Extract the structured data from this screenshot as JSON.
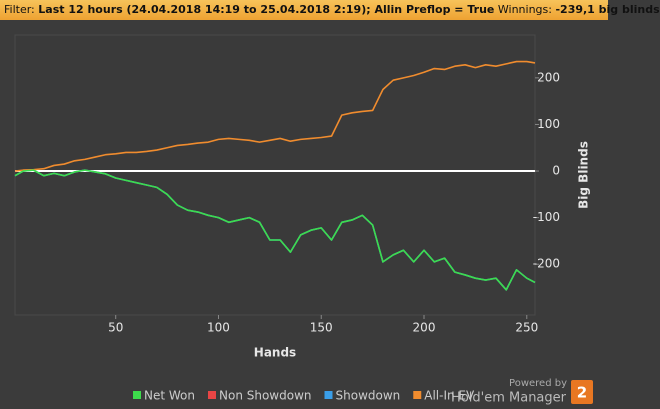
{
  "header": {
    "filter_label": "Filter:",
    "filter_text": "Last 12 hours (24.04.2018 14:19 to 25.04.2018 2:19); Allin Preflop = True",
    "winnings_label": "Winnings:",
    "winnings_value": "-239,1 big blinds"
  },
  "branding": {
    "powered_by": "Powered by",
    "product": "Hold'em Manager",
    "logo": "2"
  },
  "chart_data": {
    "type": "line",
    "x_label": "Hands",
    "y_label": "Big Blinds",
    "x": [
      1,
      5,
      10,
      15,
      20,
      25,
      30,
      35,
      40,
      45,
      50,
      55,
      60,
      65,
      70,
      75,
      80,
      85,
      90,
      95,
      100,
      105,
      110,
      115,
      120,
      125,
      130,
      135,
      140,
      145,
      150,
      155,
      160,
      165,
      170,
      175,
      180,
      185,
      190,
      195,
      200,
      205,
      210,
      215,
      220,
      225,
      230,
      235,
      240,
      245,
      250,
      254
    ],
    "series": [
      {
        "name": "Net Won",
        "color": "#3ddc4c",
        "values": [
          -10,
          0,
          2,
          -10,
          -5,
          -10,
          -2,
          2,
          -2,
          -6,
          -15,
          -20,
          -25,
          -30,
          -35,
          -50,
          -73,
          -84,
          -88,
          -95,
          -100,
          -110,
          -105,
          -100,
          -110,
          -148,
          -148,
          -174,
          -137,
          -127,
          -122,
          -148,
          -110,
          -105,
          -95,
          -116,
          -195,
          -180,
          -170,
          -195,
          -170,
          -195,
          -187,
          -217,
          -223,
          -230,
          -234,
          -230,
          -255,
          -212,
          -230,
          -239.1
        ]
      },
      {
        "name": "Non Showdown",
        "color": "#e84545",
        "values": [
          0,
          0,
          0,
          0,
          0,
          0,
          0,
          0,
          0,
          0,
          0,
          0,
          0,
          0,
          0,
          0,
          0,
          0,
          0,
          0,
          0,
          0,
          0,
          0,
          0,
          0,
          0,
          0,
          0,
          0,
          0,
          0,
          0,
          0,
          0,
          0,
          0,
          0,
          0,
          0,
          0,
          0,
          0,
          0,
          0,
          0,
          0,
          0,
          0,
          0,
          0,
          0
        ]
      },
      {
        "name": "Showdown",
        "color": "#3a9ee8",
        "values": [
          -10,
          0,
          2,
          -10,
          -5,
          -10,
          -2,
          2,
          -2,
          -6,
          -15,
          -20,
          -25,
          -30,
          -35,
          -50,
          -73,
          -84,
          -88,
          -95,
          -100,
          -110,
          -105,
          -100,
          -110,
          -148,
          -148,
          -174,
          -137,
          -127,
          -122,
          -148,
          -110,
          -105,
          -95,
          -116,
          -195,
          -180,
          -170,
          -195,
          -170,
          -195,
          -187,
          -217,
          -223,
          -230,
          -234,
          -230,
          -255,
          -212,
          -230,
          -239.1
        ]
      },
      {
        "name": "All-In EV",
        "color": "#f08c2e",
        "values": [
          0,
          2,
          3,
          5,
          12,
          15,
          22,
          25,
          30,
          35,
          37,
          40,
          40,
          42,
          45,
          50,
          55,
          57,
          60,
          62,
          68,
          70,
          68,
          66,
          62,
          66,
          70,
          64,
          68,
          70,
          72,
          75,
          120,
          125,
          128,
          130,
          175,
          195,
          200,
          205,
          212,
          220,
          218,
          225,
          228,
          222,
          228,
          225,
          230,
          235,
          235,
          232
        ]
      }
    ],
    "xlim": [
      1,
      254
    ],
    "xticks": [
      50,
      100,
      150,
      200,
      250
    ],
    "ylim": [
      -309,
      292
    ],
    "yticks": [
      -200,
      -100,
      0,
      100,
      200
    ],
    "zero_line": true,
    "legend": "bottom"
  }
}
